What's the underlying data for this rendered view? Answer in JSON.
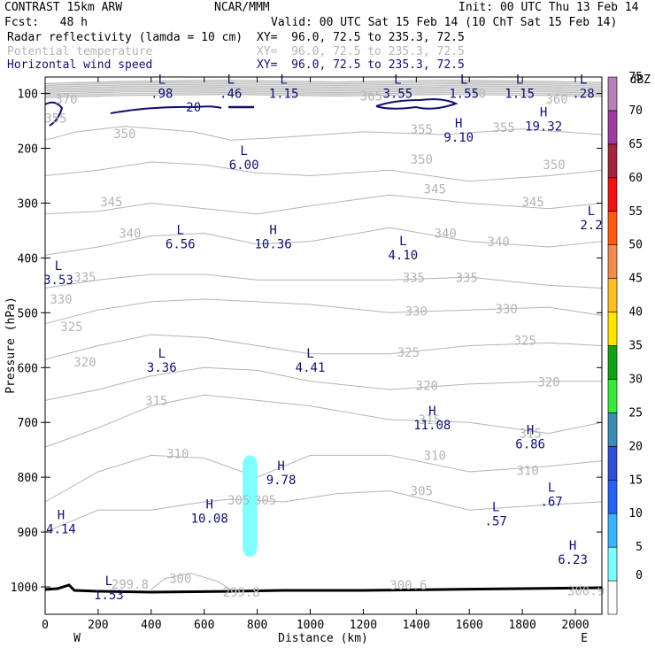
{
  "header": {
    "title": "CONTRAST 15km ARW",
    "center": "NCAR/MMM",
    "init": "Init: 00 UTC Thu 13 Feb 14",
    "fcst": "Fcst:   48 h",
    "valid": "Valid: 00 UTC Sat 15 Feb 14 (10 ChT Sat 15 Feb 14)",
    "field1": "Radar reflectivity (lamda = 10 cm)",
    "field1_xy": "XY=  96.0, 72.5 to 235.3, 72.5",
    "field2": "Potential temperature",
    "field2_xy": "XY=  96.0, 72.5 to 235.3, 72.5",
    "field3": "Horizontal wind speed",
    "field3_xy": "XY=  96.0, 72.5 to 235.3, 72.5"
  },
  "colors": {
    "theta": "#b4b4b4",
    "wind": "#101070",
    "reflectivity_cell": "#80ffff"
  },
  "chart_data": {
    "type": "cross-section",
    "xlabel": "Distance (km)",
    "ylabel": "Pressure (hPa)",
    "xlim": [
      0,
      2100
    ],
    "ylim": [
      1050,
      70
    ],
    "x_ticks": [
      "0",
      "200",
      "400",
      "600",
      "800",
      "1000",
      "1200",
      "1400",
      "1600",
      "1800",
      "2000"
    ],
    "y_ticks": [
      "100",
      "200",
      "300",
      "400",
      "500",
      "600",
      "700",
      "800",
      "900",
      "1000"
    ],
    "x_end_labels": {
      "west": "W",
      "east": "E"
    },
    "colorbar": {
      "title": "dBZ",
      "levels": [
        "0",
        "5",
        "10",
        "15",
        "20",
        "25",
        "30",
        "35",
        "40",
        "45",
        "50",
        "55",
        "60",
        "65",
        "70",
        "75"
      ],
      "colors": [
        "#ffffff",
        "#80ffff",
        "#3cb4ff",
        "#2864f0",
        "#3050d0",
        "#3c8cb4",
        "#3ce63c",
        "#14a014",
        "#ffe600",
        "#ffbe28",
        "#f08c50",
        "#ff5a14",
        "#f01414",
        "#a0283c",
        "#9c3c9c",
        "#b482b4"
      ]
    },
    "theta_contours": [
      {
        "value": "370",
        "x": 80,
        "p": 110
      },
      {
        "value": "365",
        "x": 1230,
        "p": 105
      },
      {
        "value": "370",
        "x": 1620,
        "p": 100
      },
      {
        "value": "360",
        "x": 1930,
        "p": 110
      },
      {
        "value": "355",
        "x": 40,
        "p": 145
      },
      {
        "value": "350",
        "x": 300,
        "p": 173
      },
      {
        "value": "355",
        "x": 1420,
        "p": 165
      },
      {
        "value": "355",
        "x": 1730,
        "p": 162
      },
      {
        "value": "350",
        "x": 1420,
        "p": 220
      },
      {
        "value": "350",
        "x": 1920,
        "p": 230
      },
      {
        "value": "345",
        "x": 250,
        "p": 298
      },
      {
        "value": "345",
        "x": 1470,
        "p": 274
      },
      {
        "value": "345",
        "x": 1840,
        "p": 298
      },
      {
        "value": "340",
        "x": 320,
        "p": 355
      },
      {
        "value": "340",
        "x": 1510,
        "p": 355
      },
      {
        "value": "340",
        "x": 1710,
        "p": 370
      },
      {
        "value": "335",
        "x": 150,
        "p": 435
      },
      {
        "value": "335",
        "x": 1390,
        "p": 436
      },
      {
        "value": "335",
        "x": 1590,
        "p": 436
      },
      {
        "value": "330",
        "x": 60,
        "p": 475
      },
      {
        "value": "330",
        "x": 1400,
        "p": 497
      },
      {
        "value": "330",
        "x": 1740,
        "p": 493
      },
      {
        "value": "325",
        "x": 100,
        "p": 525
      },
      {
        "value": "325",
        "x": 1370,
        "p": 572
      },
      {
        "value": "325",
        "x": 1810,
        "p": 550
      },
      {
        "value": "320",
        "x": 150,
        "p": 590
      },
      {
        "value": "320",
        "x": 1440,
        "p": 633
      },
      {
        "value": "320",
        "x": 1900,
        "p": 626
      },
      {
        "value": "315",
        "x": 420,
        "p": 660
      },
      {
        "value": "315",
        "x": 1450,
        "p": 695
      },
      {
        "value": "315",
        "x": 1830,
        "p": 720
      },
      {
        "value": "310",
        "x": 500,
        "p": 757
      },
      {
        "value": "310",
        "x": 1470,
        "p": 760
      },
      {
        "value": "310",
        "x": 1820,
        "p": 788
      },
      {
        "value": "305",
        "x": 730,
        "p": 842
      },
      {
        "value": "305",
        "x": 830,
        "p": 842
      },
      {
        "value": "305",
        "x": 1420,
        "p": 825
      },
      {
        "value": "300",
        "x": 510,
        "p": 985
      },
      {
        "value": "299.8",
        "x": 320,
        "p": 995
      },
      {
        "value": "299.8",
        "x": 740,
        "p": 1010
      },
      {
        "value": "300.6",
        "x": 1370,
        "p": 997
      },
      {
        "value": "300.9",
        "x": 2040,
        "p": 1007
      }
    ],
    "wind_labels": [
      {
        "type": "L",
        "value": ".98",
        "x": 440,
        "p": 85
      },
      {
        "type": "L",
        "value": ".46",
        "x": 700,
        "p": 85
      },
      {
        "type": "L",
        "value": "1.15",
        "x": 900,
        "p": 85
      },
      {
        "type": "L",
        "value": "3.55",
        "x": 1330,
        "p": 85
      },
      {
        "type": "L",
        "value": "1.55",
        "x": 1580,
        "p": 85
      },
      {
        "type": "L",
        "value": "1.15",
        "x": 1790,
        "p": 85
      },
      {
        "type": "L",
        "value": ".28",
        "x": 2030,
        "p": 85
      },
      {
        "type": "",
        "value": "20",
        "x": 560,
        "p": 110
      },
      {
        "type": "H",
        "value": "9.10",
        "x": 1560,
        "p": 165
      },
      {
        "type": "H",
        "value": "19.32",
        "x": 1880,
        "p": 145
      },
      {
        "type": "L",
        "value": "6.00",
        "x": 750,
        "p": 215
      },
      {
        "type": "L",
        "value": "2.2",
        "x": 2060,
        "p": 325
      },
      {
        "type": "L",
        "value": "6.56",
        "x": 510,
        "p": 360
      },
      {
        "type": "H",
        "value": "10.36",
        "x": 860,
        "p": 360
      },
      {
        "type": "L",
        "value": "4.10",
        "x": 1350,
        "p": 380
      },
      {
        "type": "L",
        "value": "3.53",
        "x": 50,
        "p": 425
      },
      {
        "type": "L",
        "value": "3.36",
        "x": 440,
        "p": 585
      },
      {
        "type": "L",
        "value": "4.41",
        "x": 1000,
        "p": 585
      },
      {
        "type": "H",
        "value": "11.08",
        "x": 1460,
        "p": 690
      },
      {
        "type": "H",
        "value": "6.86",
        "x": 1830,
        "p": 725
      },
      {
        "type": "H",
        "value": "9.78",
        "x": 890,
        "p": 790
      },
      {
        "type": "L",
        "value": ".67",
        "x": 1910,
        "p": 830
      },
      {
        "type": "H",
        "value": "10.08",
        "x": 620,
        "p": 860
      },
      {
        "type": "L",
        "value": ".57",
        "x": 1700,
        "p": 865
      },
      {
        "type": "H",
        "value": "4.14",
        "x": 60,
        "p": 880
      },
      {
        "type": "H",
        "value": "6.23",
        "x": 1990,
        "p": 935
      },
      {
        "type": "L",
        "value": "1.53",
        "x": 240,
        "p": 1000
      }
    ],
    "reflectivity_cells": [
      {
        "dbz": "5-10",
        "x_min": 745,
        "x_max": 800,
        "p_top": 760,
        "p_bottom": 945
      }
    ]
  }
}
